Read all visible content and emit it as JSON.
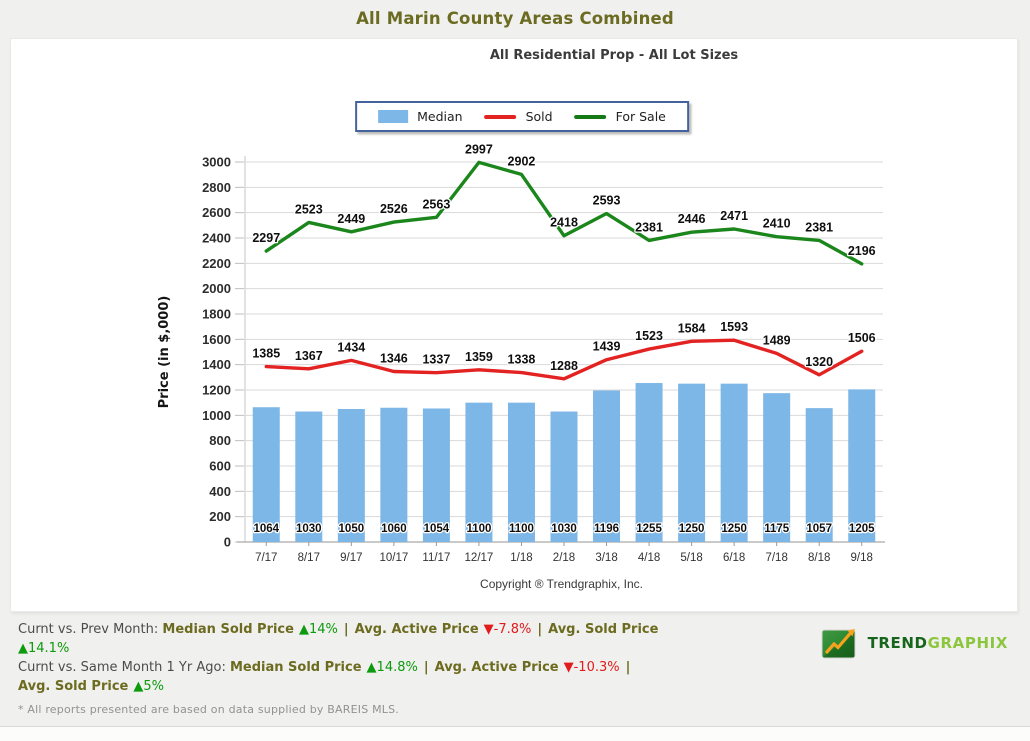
{
  "page": {
    "title": "All Marin County Areas Combined",
    "subtitle": "All Residential Prop - All Lot Sizes",
    "copyright": "Copyright ® Trendgraphix, Inc.",
    "disclaimer": "* All reports presented are based on data supplied by BAREIS MLS."
  },
  "colors": {
    "title_olive": "#6c6b22",
    "bar_blue": "#7db7e8",
    "sold_red": "#e32222",
    "forsale_green": "#1b861b",
    "up_green": "#0d9a0d",
    "down_red": "#e31b1b",
    "stat_label_olive": "#6c6b20",
    "page_bg": "#f0f0ee",
    "grid_gray": "#dadada"
  },
  "chart_data": {
    "type": "bar+line",
    "title": "All Residential Prop - All Lot Sizes",
    "xlabel": "",
    "ylabel": "Price (in $,000)",
    "ylim": [
      0,
      3000
    ],
    "ytick_step": 200,
    "grid": true,
    "legend_position": "top-center",
    "categories": [
      "7/17",
      "8/17",
      "9/17",
      "10/17",
      "11/17",
      "12/17",
      "1/18",
      "2/18",
      "3/18",
      "4/18",
      "5/18",
      "6/18",
      "7/18",
      "8/18",
      "9/18"
    ],
    "series": [
      {
        "name": "Median",
        "kind": "bar",
        "color": "#7db7e8",
        "values": [
          1064,
          1030,
          1050,
          1060,
          1054,
          1100,
          1100,
          1030,
          1196,
          1255,
          1250,
          1250,
          1175,
          1057,
          1205
        ]
      },
      {
        "name": "Sold",
        "kind": "line",
        "color": "#e32222",
        "values": [
          1385,
          1367,
          1434,
          1346,
          1337,
          1359,
          1338,
          1288,
          1439,
          1523,
          1584,
          1593,
          1489,
          1320,
          1506
        ]
      },
      {
        "name": "For Sale",
        "kind": "line",
        "color": "#1b861b",
        "values": [
          2297,
          2523,
          2449,
          2526,
          2563,
          2997,
          2902,
          2418,
          2593,
          2381,
          2446,
          2471,
          2410,
          2381,
          2196
        ]
      }
    ]
  },
  "legend": [
    {
      "label": "Median",
      "swatch": "bar",
      "color": "#7db7e8"
    },
    {
      "label": "Sold",
      "swatch": "line",
      "color": "#e32222"
    },
    {
      "label": "For Sale",
      "swatch": "line",
      "color": "#157a15"
    }
  ],
  "stats": {
    "lines": [
      {
        "rows": [
          [
            {
              "type": "text",
              "v": "Curnt vs. Prev Month: "
            },
            {
              "type": "label",
              "v": "Median Sold Price"
            },
            {
              "type": "up",
              "v": "14%"
            },
            {
              "type": "sep"
            },
            {
              "type": "label",
              "v": "Avg. Active Price"
            },
            {
              "type": "down",
              "v": "-7.8%"
            },
            {
              "type": "sep"
            },
            {
              "type": "label",
              "v": "Avg. Sold Price"
            }
          ],
          [
            {
              "type": "up",
              "v": "14.1%"
            }
          ]
        ]
      },
      {
        "rows": [
          [
            {
              "type": "text",
              "v": "Curnt vs. Same Month 1 Yr Ago: "
            },
            {
              "type": "label",
              "v": "Median Sold Price"
            },
            {
              "type": "up",
              "v": "14.8%"
            },
            {
              "type": "sep"
            },
            {
              "type": "label",
              "v": "Avg. Active Price"
            },
            {
              "type": "down",
              "v": "-10.3%"
            },
            {
              "type": "sep"
            }
          ],
          [
            {
              "type": "label",
              "v": "Avg. Sold Price"
            },
            {
              "type": "up",
              "v": "5%"
            }
          ]
        ]
      }
    ]
  },
  "logo": {
    "trend": "TREND",
    "graphix": "GRAPHIX"
  }
}
